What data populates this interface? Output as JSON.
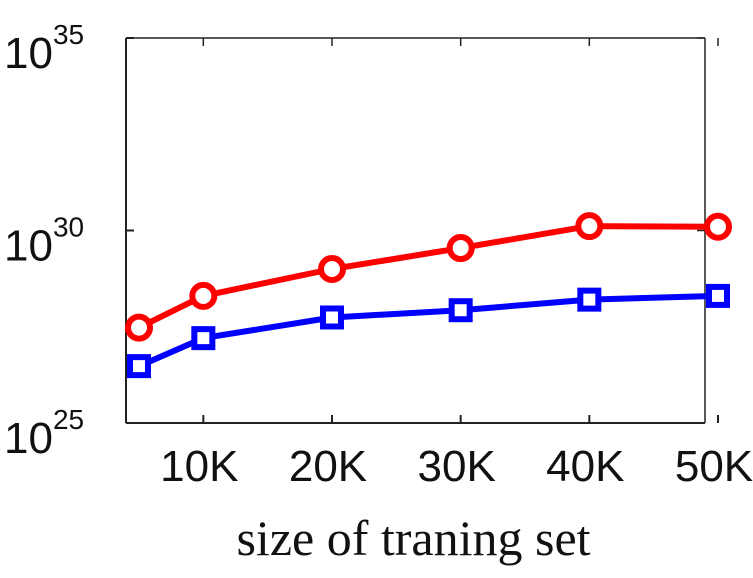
{
  "chart_data": {
    "type": "line",
    "xlabel": "size of traning set",
    "ylabel": "",
    "x": [
      5000,
      10000,
      20000,
      30000,
      40000,
      50000
    ],
    "xlim": [
      5000,
      50000
    ],
    "ylim": [
      1e+25,
      1e+35
    ],
    "y_scale": "log",
    "x_ticks": [
      {
        "value": 10000,
        "label": "10K"
      },
      {
        "value": 20000,
        "label": "20K"
      },
      {
        "value": 30000,
        "label": "30K"
      },
      {
        "value": 40000,
        "label": "40K"
      },
      {
        "value": 50000,
        "label": "50K"
      }
    ],
    "y_ticks": [
      {
        "value": 1e+25,
        "base": "10",
        "exp": "25"
      },
      {
        "value": 1e+30,
        "base": "10",
        "exp": "30"
      },
      {
        "value": 1e+35,
        "base": "10",
        "exp": "35"
      }
    ],
    "grid": false,
    "series": [
      {
        "marker": "circle",
        "color": "#ff0000",
        "values": [
          3e+27,
          2e+28,
          1e+29,
          3.5e+29,
          1.3e+30,
          1.25e+30
        ]
      },
      {
        "marker": "square",
        "color": "#0000ff",
        "values": [
          3e+26,
          1.6e+27,
          5.5e+27,
          8.5e+27,
          1.6e+28,
          2e+28
        ]
      }
    ]
  }
}
